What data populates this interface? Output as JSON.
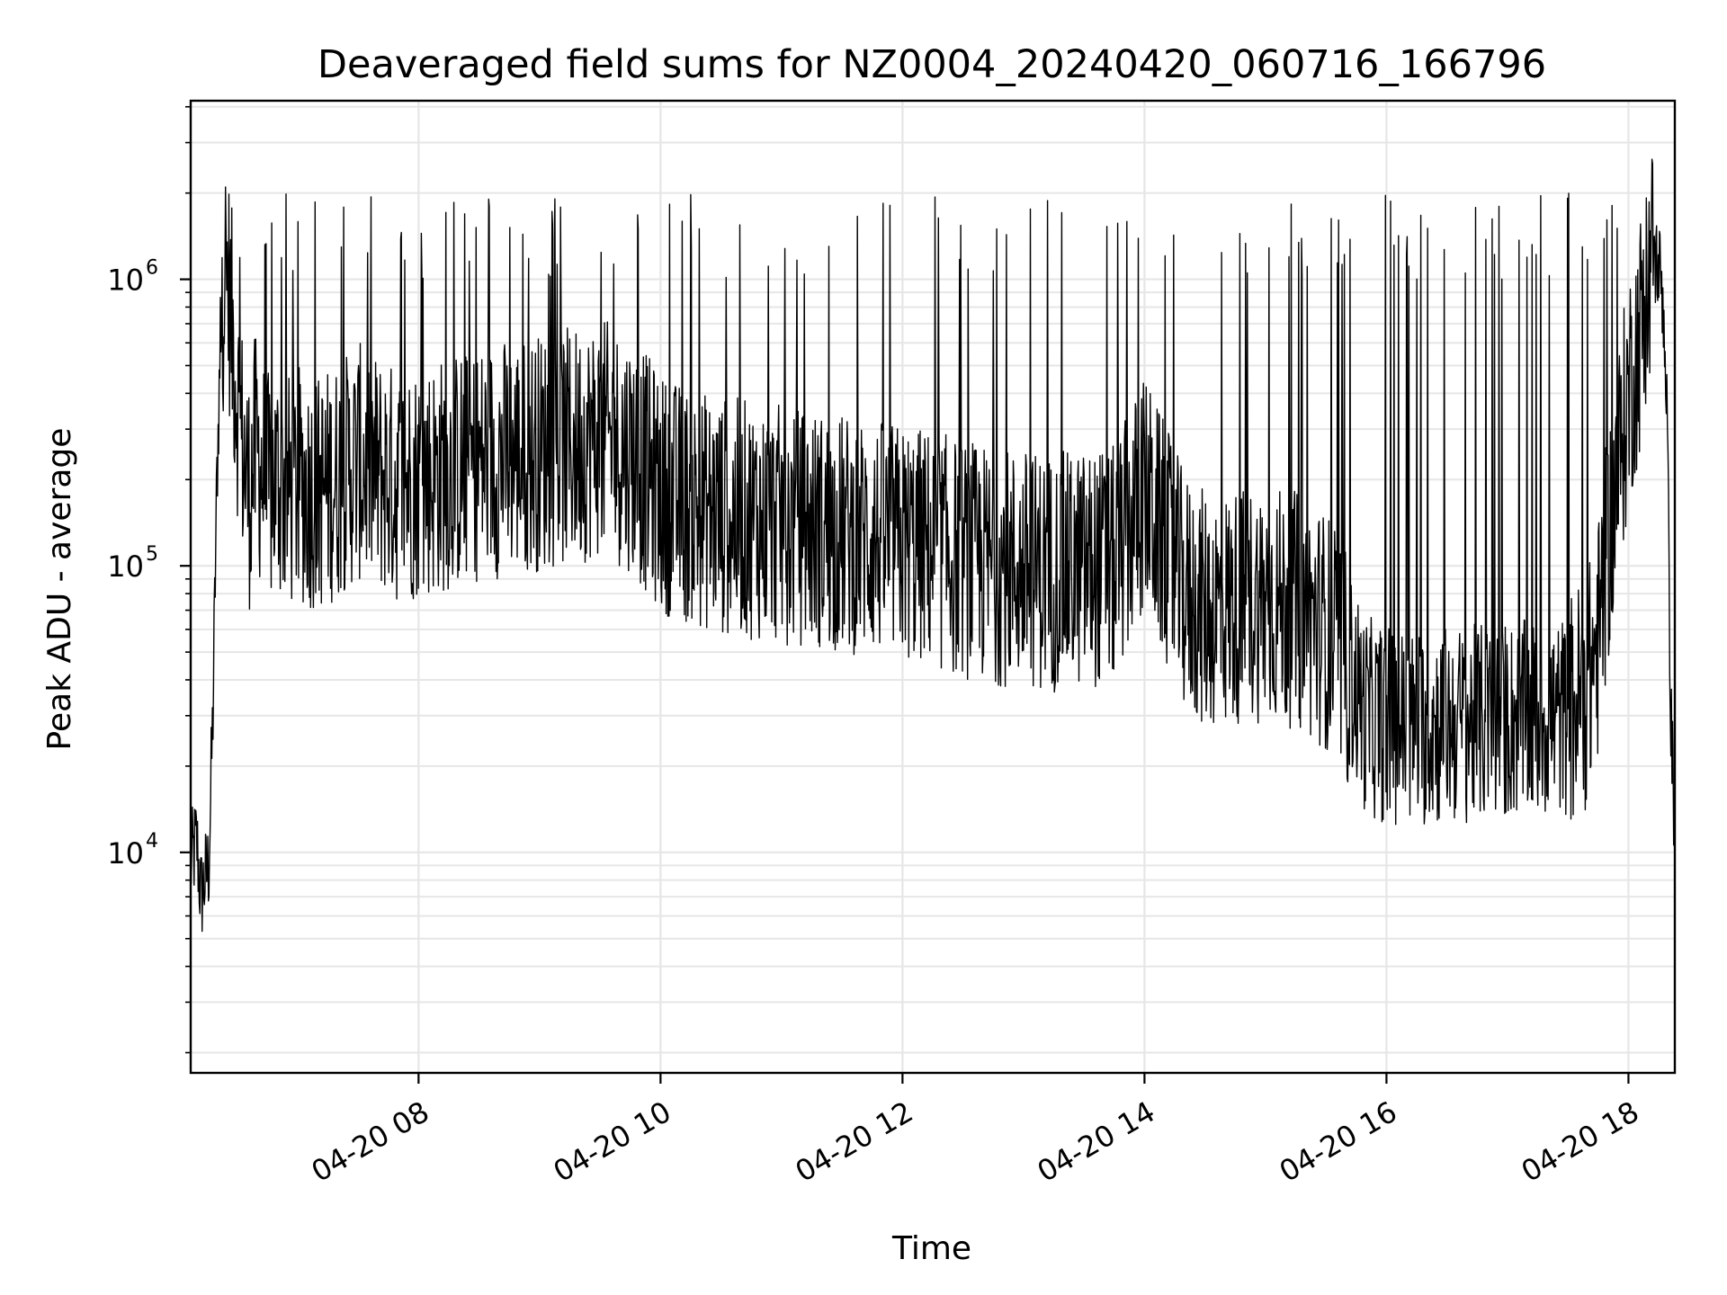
{
  "chart_data": {
    "type": "line",
    "title": "Deaveraged field sums for NZ0004_20240420_060716_166796",
    "xlabel": "Time",
    "ylabel": "Peak ADU - average",
    "yscale": "log",
    "ylim": [
      1700,
      4200000
    ],
    "xlim": [
      "2024-04-20 06:07",
      "2024-04-20 18:23"
    ],
    "x_ticks": [
      "2024-04-20 08:00",
      "2024-04-20 10:00",
      "2024-04-20 12:00",
      "2024-04-20 14:00",
      "2024-04-20 16:00",
      "2024-04-20 18:00"
    ],
    "x_tick_labels": [
      "04-20 08",
      "04-20 10",
      "04-20 12",
      "04-20 14",
      "04-20 16",
      "04-20 18"
    ],
    "y_ticks": [
      10000,
      100000,
      1000000
    ],
    "y_tick_labels": [
      {
        "base": "10",
        "exp": "4"
      },
      {
        "base": "10",
        "exp": "5"
      },
      {
        "base": "10",
        "exp": "6"
      }
    ],
    "grid": true,
    "line_color": "#000000",
    "grid_color": "#e6e6e6",
    "series": [
      {
        "x": [
          "2024-04-20 06:07",
          "2024-04-20 06:10",
          "2024-04-20 06:12",
          "2024-04-20 06:14",
          "2024-04-20 06:16",
          "2024-04-20 06:18",
          "2024-04-20 06:20",
          "2024-04-20 06:22",
          "2024-04-20 06:24",
          "2024-04-20 06:26",
          "2024-04-20 06:28",
          "2024-04-20 06:30",
          "2024-04-20 06:33",
          "2024-04-20 06:36",
          "2024-04-20 06:39",
          "2024-04-20 06:42",
          "2024-04-20 06:45",
          "2024-04-20 06:50",
          "2024-04-20 06:55",
          "2024-04-20 07:00",
          "2024-04-20 07:10",
          "2024-04-20 07:20",
          "2024-04-20 07:30",
          "2024-04-20 07:40",
          "2024-04-20 07:50",
          "2024-04-20 08:00",
          "2024-04-20 08:15",
          "2024-04-20 08:30",
          "2024-04-20 08:45",
          "2024-04-20 09:00",
          "2024-04-20 09:15",
          "2024-04-20 09:30",
          "2024-04-20 09:45",
          "2024-04-20 10:00",
          "2024-04-20 10:15",
          "2024-04-20 10:30",
          "2024-04-20 10:45",
          "2024-04-20 11:00",
          "2024-04-20 11:15",
          "2024-04-20 11:30",
          "2024-04-20 11:45",
          "2024-04-20 12:00",
          "2024-04-20 12:15",
          "2024-04-20 12:30",
          "2024-04-20 12:45",
          "2024-04-20 13:00",
          "2024-04-20 13:15",
          "2024-04-20 13:30",
          "2024-04-20 13:45",
          "2024-04-20 14:00",
          "2024-04-20 14:10",
          "2024-04-20 14:20",
          "2024-04-20 14:30",
          "2024-04-20 14:45",
          "2024-04-20 15:00",
          "2024-04-20 15:15",
          "2024-04-20 15:30",
          "2024-04-20 15:40",
          "2024-04-20 15:50",
          "2024-04-20 16:00",
          "2024-04-20 16:15",
          "2024-04-20 16:30",
          "2024-04-20 16:45",
          "2024-04-20 17:00",
          "2024-04-20 17:15",
          "2024-04-20 17:30",
          "2024-04-20 17:40",
          "2024-04-20 17:45",
          "2024-04-20 17:50",
          "2024-04-20 17:55",
          "2024-04-20 18:00",
          "2024-04-20 18:05",
          "2024-04-20 18:10",
          "2024-04-20 18:13",
          "2024-04-20 18:15",
          "2024-04-20 18:17",
          "2024-04-20 18:19",
          "2024-04-20 18:21",
          "2024-04-20 18:23"
        ],
        "y": [
          9000,
          11000,
          7000,
          8000,
          9000,
          30000,
          200000,
          700000,
          1100000,
          900000,
          600000,
          400000,
          250000,
          180000,
          250000,
          220000,
          180000,
          200000,
          180000,
          190000,
          180000,
          200000,
          230000,
          210000,
          190000,
          200000,
          210000,
          230000,
          240000,
          250000,
          260000,
          280000,
          250000,
          180000,
          160000,
          150000,
          145000,
          140000,
          135000,
          130000,
          125000,
          120000,
          115000,
          105000,
          100000,
          98000,
          95000,
          98000,
          100000,
          180000,
          120000,
          80000,
          70000,
          72000,
          75000,
          70000,
          60000,
          45000,
          30000,
          28000,
          27000,
          28000,
          28000,
          29000,
          29000,
          30000,
          38000,
          55000,
          120000,
          220000,
          400000,
          600000,
          1100000,
          1200000,
          1100000,
          900000,
          400000,
          30000,
          12000
        ]
      }
    ]
  }
}
